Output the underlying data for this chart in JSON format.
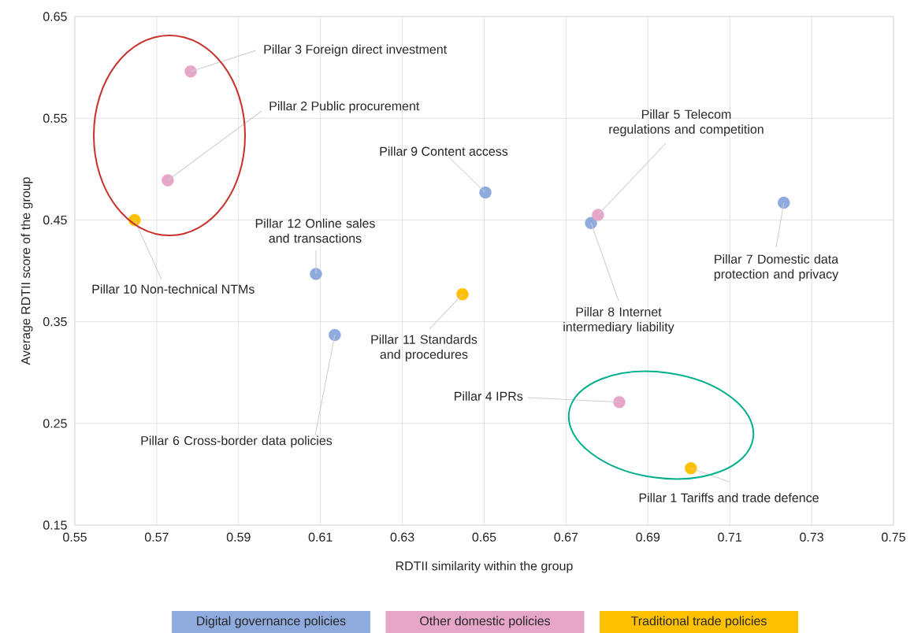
{
  "chart_data": {
    "type": "scatter",
    "xlabel": "RDTII similarity within the group",
    "ylabel": "Average RDTII score of the group",
    "xlim": [
      0.55,
      0.75
    ],
    "ylim": [
      0.15,
      0.65
    ],
    "xticks": [
      0.55,
      0.57,
      0.59,
      0.61,
      0.63,
      0.65,
      0.67,
      0.69,
      0.71,
      0.73,
      0.75
    ],
    "yticks": [
      0.15,
      0.25,
      0.35,
      0.45,
      0.55,
      0.65
    ],
    "grid": true,
    "legend": "bottom",
    "marker": "circle",
    "series": [
      {
        "name": "Digital governance policies",
        "color": "#8faadc",
        "x": [
          0.6135,
          0.7232,
          0.6761,
          0.6503,
          0.6089
        ],
        "values": [
          0.337,
          0.467,
          0.447,
          0.477,
          0.397
        ]
      },
      {
        "name": "Other domestic policies",
        "color": "#e6a6c8",
        "x": [
          0.5727,
          0.5783,
          0.683,
          0.6778
        ],
        "values": [
          0.489,
          0.596,
          0.271,
          0.455
        ]
      },
      {
        "name": "Traditional trade policies",
        "color": "#ffc000",
        "x": [
          0.7005,
          0.5646,
          0.6447
        ],
        "values": [
          0.206,
          0.45,
          0.377
        ]
      }
    ],
    "annotations": [
      {
        "text": "Pillar 3 Foreign direct investment",
        "x": 0.5783,
        "y": 0.596
      },
      {
        "text": "Pillar 2 Public procurement",
        "x": 0.5727,
        "y": 0.489
      },
      {
        "text": "Pillar 9 Content access",
        "x": 0.6503,
        "y": 0.477
      },
      {
        "text": "Pillar 5 Telecom regulations and competition",
        "x": 0.6778,
        "y": 0.455
      },
      {
        "text": "Pillar 12 Online sales and transactions",
        "x": 0.6089,
        "y": 0.397
      },
      {
        "text": "Pillar 10 Non-technical NTMs",
        "x": 0.5646,
        "y": 0.45
      },
      {
        "text": "Pillar 7 Domestic data protection and privacy",
        "x": 0.7232,
        "y": 0.467
      },
      {
        "text": "Pillar 8 Internet intermediary liability",
        "x": 0.6761,
        "y": 0.447
      },
      {
        "text": "Pillar 11 Standards and procedures",
        "x": 0.6447,
        "y": 0.377
      },
      {
        "text": "Pillar 6 Cross-border data policies",
        "x": 0.6135,
        "y": 0.337
      },
      {
        "text": "Pillar 4 IPRs",
        "x": 0.683,
        "y": 0.271
      },
      {
        "text": "Pillar 1 Tariffs and trade defence",
        "x": 0.7005,
        "y": 0.206
      }
    ]
  }
}
